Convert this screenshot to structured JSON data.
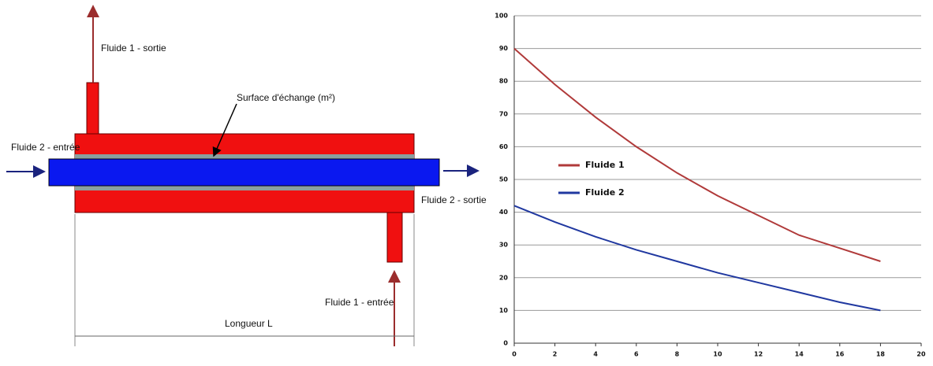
{
  "diagram": {
    "labels": {
      "fluid1_out": "Fluide 1 - sortie",
      "surface": "Surface d'échange (m²)",
      "fluid2_in": "Fluide 2 - entrée",
      "fluid2_out": "Fluide 2 - sortie",
      "fluid1_in": "Fluide 1 - entrée",
      "length": "Longueur L"
    }
  },
  "chart_data": {
    "type": "line",
    "x": [
      0,
      2,
      4,
      6,
      8,
      10,
      12,
      14,
      16,
      18
    ],
    "series": [
      {
        "name": "Fluide 1",
        "color": "#b03a3a",
        "values": [
          90,
          79,
          69,
          60,
          52,
          45,
          39,
          33,
          29,
          25
        ]
      },
      {
        "name": "Fluide 2",
        "color": "#2038a0",
        "values": [
          42,
          37,
          32.5,
          28.5,
          25,
          21.5,
          18.5,
          15.5,
          12.5,
          10
        ]
      }
    ],
    "xlim": [
      0,
      20
    ],
    "xticks": [
      0,
      2,
      4,
      6,
      8,
      10,
      12,
      14,
      16,
      18,
      20
    ],
    "ylim": [
      0,
      100
    ],
    "yticks": [
      0,
      10,
      20,
      30,
      40,
      50,
      60,
      70,
      80,
      90,
      100
    ],
    "grid": true,
    "legend": "left"
  }
}
